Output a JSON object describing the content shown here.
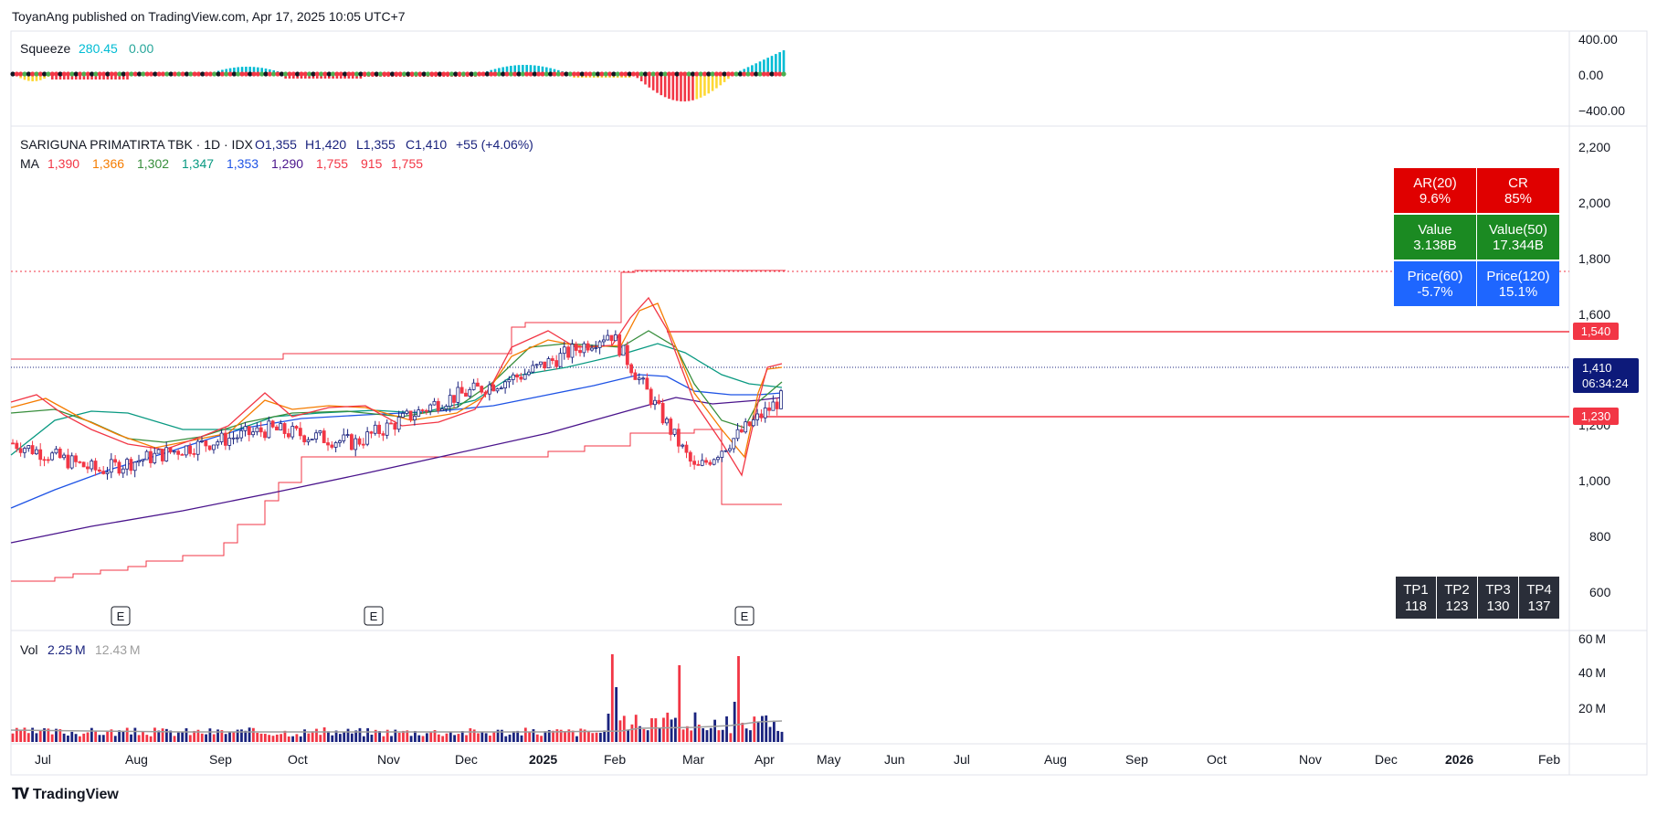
{
  "header": {
    "publish_line": "ToyanAng published on TradingView.com, Apr 17, 2025 10:05 UTC+7"
  },
  "footer": {
    "brand": "TradingView",
    "logo_icon": "tradingview-logo-icon"
  },
  "squeeze": {
    "label": "Squeeze",
    "value": "280.45",
    "value2": "0.00",
    "axis_ticks": [
      "400.00",
      "0.00",
      "−400.00"
    ]
  },
  "main": {
    "symbol_line": "SARIGUNA PRIMATIRTA TBK · 1D · IDX",
    "ohlc": {
      "o": "O1,355",
      "h": "H1,420",
      "l": "L1,355",
      "c": "C1,410",
      "chg": "+55 (+4.06%)"
    },
    "ma": {
      "label": "MA",
      "values": [
        {
          "v": "1,390",
          "color": "#f23645"
        },
        {
          "v": "1,366",
          "color": "#f57c00"
        },
        {
          "v": "1,302",
          "color": "#388e3c"
        },
        {
          "v": "1,347",
          "color": "#089981"
        },
        {
          "v": "1,353",
          "color": "#1e53e5"
        },
        {
          "v": "1,290",
          "color": "#4a148c"
        },
        {
          "v": "1,755",
          "color": "#f23645"
        },
        {
          "v": "915",
          "color": "#f23645"
        },
        {
          "v": "1,755",
          "color": "#f23645"
        }
      ]
    },
    "price_axis_ticks": [
      "2,200",
      "2,000",
      "1,800",
      "1,600",
      "1,200",
      "1,000",
      "800",
      "600"
    ],
    "price_labels": {
      "resistance": "1,540",
      "support": "1,230",
      "last": "1,410",
      "countdown": "06:34:24"
    },
    "earnings_marker": "E"
  },
  "stats_table": [
    [
      {
        "title": "AR(20)",
        "value": "9.6%",
        "bg": "#e00000"
      },
      {
        "title": "CR",
        "value": "85%",
        "bg": "#e00000"
      }
    ],
    [
      {
        "title": "Value",
        "value": "3.138B",
        "bg": "#1b8a22"
      },
      {
        "title": "Value(50)",
        "value": "17.344B",
        "bg": "#1b8a22"
      }
    ],
    [
      {
        "title": "Price(60)",
        "value": "-5.7%",
        "bg": "#1e66ff"
      },
      {
        "title": "Price(120)",
        "value": "15.1%",
        "bg": "#1e66ff"
      }
    ]
  ],
  "tp_table": [
    {
      "title": "TP1",
      "value": "118"
    },
    {
      "title": "TP2",
      "value": "123"
    },
    {
      "title": "TP3",
      "value": "130"
    },
    {
      "title": "TP4",
      "value": "137"
    }
  ],
  "volume": {
    "label": "Vol",
    "value": "2.25 M",
    "value2": "12.43 M",
    "axis_ticks": [
      "60 M",
      "40 M",
      "20 M"
    ]
  },
  "time_axis": [
    "Jul",
    "Aug",
    "Sep",
    "Oct",
    "Nov",
    "Dec",
    "2025",
    "Feb",
    "Mar",
    "Apr",
    "May",
    "Jun",
    "Jul",
    "Aug",
    "Sep",
    "Oct",
    "Nov",
    "Dec",
    "2026",
    "Feb"
  ],
  "chart_data": {
    "type": "candlestick",
    "interval": "1D",
    "ylim": [
      500,
      2300
    ],
    "closes_approx": [
      {
        "month": "Jul",
        "close": 1250
      },
      {
        "month": "Aug",
        "close": 1150
      },
      {
        "month": "Sep",
        "close": 1230
      },
      {
        "month": "Oct",
        "close": 1300
      },
      {
        "month": "Nov",
        "close": 1250
      },
      {
        "month": "Dec",
        "close": 1400
      },
      {
        "month": "Jan",
        "close": 1500
      },
      {
        "month": "Feb",
        "close": 1650
      },
      {
        "month": "Mar",
        "close": 1150
      },
      {
        "month": "Apr",
        "close": 1410
      }
    ],
    "horizontal_levels": [
      1755,
      1540,
      1410,
      1230
    ],
    "colors": {
      "up": "#1a237e",
      "down": "#f23645",
      "ma_red": "#f23645",
      "ma_orange": "#f57c00",
      "ma_green": "#388e3c",
      "ma_teal": "#089981",
      "ma_blue": "#1e53e5",
      "ma_purple": "#4a148c"
    }
  }
}
